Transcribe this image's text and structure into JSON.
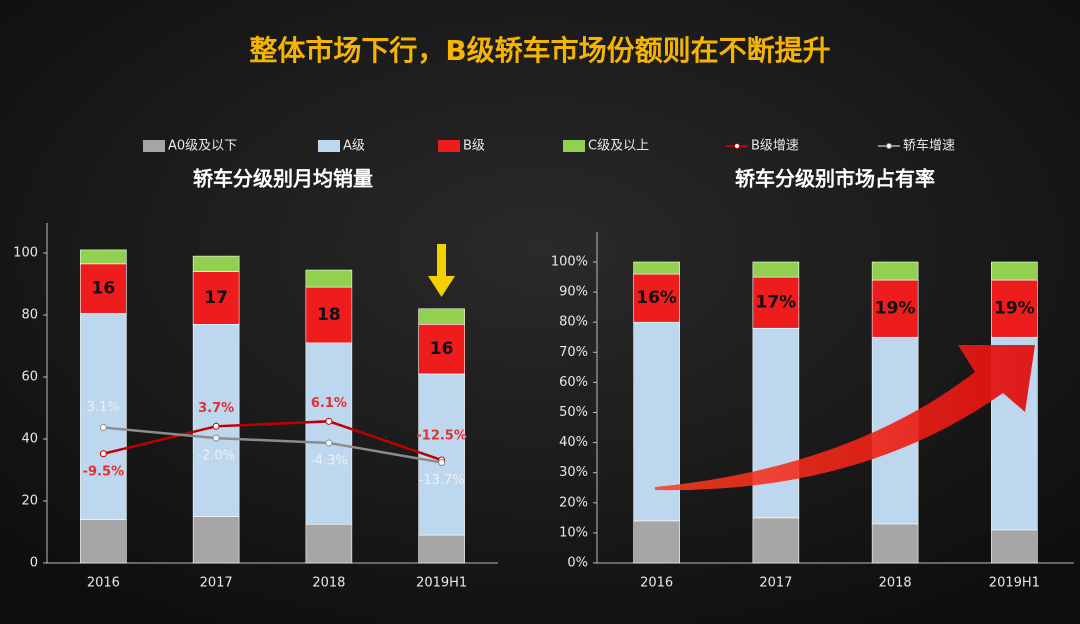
{
  "title": "整体市场下行，B级轿车市场份额则在不断提升",
  "chart_data": [
    {
      "type": "bar",
      "stacked": true,
      "title": "轿车分级别月均销量",
      "categories": [
        "2016",
        "2017",
        "2018",
        "2019H1"
      ],
      "ylim": [
        0,
        100
      ],
      "yticks": [
        0,
        20,
        40,
        60,
        80,
        100
      ],
      "y2lim": [
        -62,
        87
      ],
      "series": [
        {
          "name": "A0级及以下",
          "color": "#a6a6a6",
          "values": [
            14,
            15,
            12.5,
            9
          ]
        },
        {
          "name": "A级",
          "color": "#bdd7ee",
          "values": [
            66.5,
            62,
            58.5,
            52
          ]
        },
        {
          "name": "B级",
          "color": "#ee1c1c",
          "values": [
            16,
            17,
            18,
            16
          ],
          "data_labels": true
        },
        {
          "name": "C级及以上",
          "color": "#92d050",
          "values": [
            4.5,
            5,
            5.5,
            5
          ]
        },
        {
          "name": "B级增速",
          "type": "line",
          "axis": "y2",
          "color": "#c00000",
          "label_color": "#e53030",
          "values": [
            -9.5,
            3.7,
            6.1,
            -12.5
          ],
          "value_labels": [
            "-9.5%",
            "3.7%",
            "6.1%",
            "-12.5%"
          ]
        },
        {
          "name": "轿车增速",
          "type": "line",
          "axis": "y2",
          "color": "#8c8c8c",
          "label_color": "#f0f0f0",
          "values": [
            3.1,
            -2.0,
            -4.3,
            -13.7
          ],
          "value_labels": [
            "3.1%",
            "-2.0%",
            "-4.3%",
            "-13.7%"
          ]
        }
      ]
    },
    {
      "type": "bar",
      "stacked": true,
      "title": "轿车分级别市场占有率",
      "categories": [
        "2016",
        "2017",
        "2018",
        "2019H1"
      ],
      "ylim": [
        0,
        100
      ],
      "yticks": [
        {
          "value": 0,
          "label": "0%"
        },
        {
          "value": 10,
          "label": "10%"
        },
        {
          "value": 20,
          "label": "20%"
        },
        {
          "value": 30,
          "label": "30%"
        },
        {
          "value": 40,
          "label": "40%"
        },
        {
          "value": 50,
          "label": "50%"
        },
        {
          "value": 60,
          "label": "60%"
        },
        {
          "value": 70,
          "label": "70%"
        },
        {
          "value": 80,
          "label": "80%"
        },
        {
          "value": 90,
          "label": "90%"
        },
        {
          "value": 100,
          "label": "100%"
        }
      ],
      "series": [
        {
          "color": "#a6a6a6",
          "values": [
            14,
            15,
            13,
            11
          ]
        },
        {
          "color": "#bdd7ee",
          "values": [
            66,
            63,
            62,
            64
          ]
        },
        {
          "color": "#ee1c1c",
          "values": [
            16,
            17,
            19,
            19
          ],
          "data_labels": true,
          "value_labels": [
            "16%",
            "17%",
            "19%",
            "19%"
          ]
        },
        {
          "color": "#92d050",
          "values": [
            4,
            5,
            6,
            6
          ]
        }
      ]
    }
  ]
}
